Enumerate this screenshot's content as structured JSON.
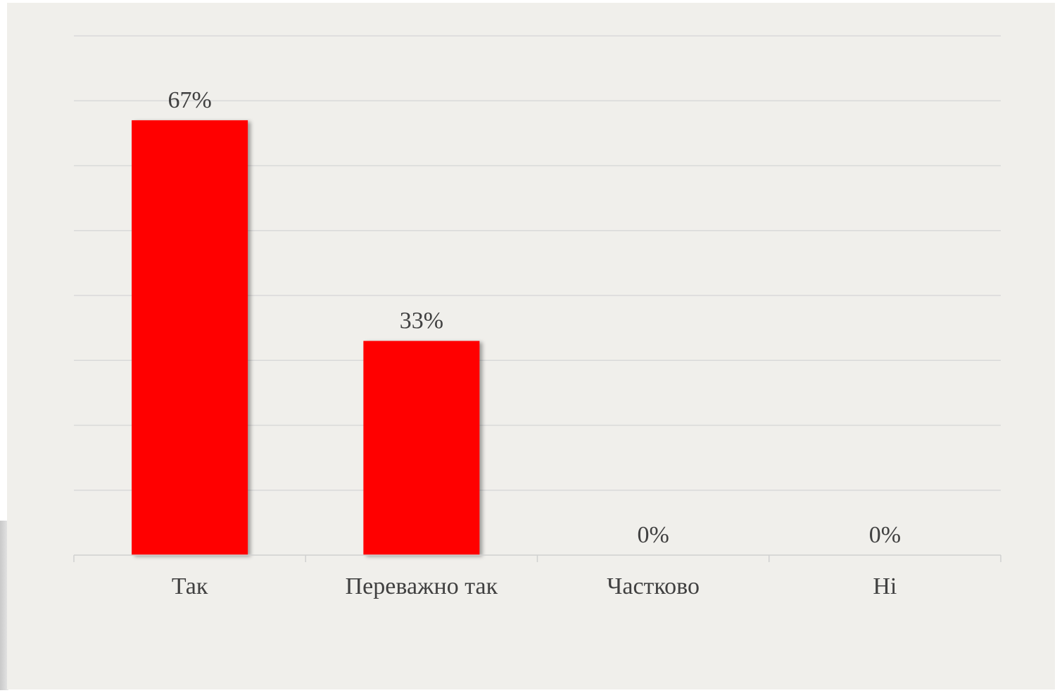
{
  "chart_data": {
    "type": "bar",
    "title": "",
    "xlabel": "",
    "ylabel": "",
    "categories": [
      "Так",
      "Переважно так",
      "Частково",
      "Ні"
    ],
    "values": [
      67,
      33,
      0,
      0
    ],
    "data_labels": [
      "67%",
      "33%",
      "0%",
      "0%"
    ],
    "ylim": [
      0,
      80
    ],
    "y_gridline_step": 10,
    "grid": true,
    "legend": "none",
    "bar_color": "#ff0000"
  },
  "colors": {
    "panel_background": "#f0efeb",
    "gridline": "#d9d9d9",
    "axis": "#d0d0d0",
    "text": "#404040"
  }
}
